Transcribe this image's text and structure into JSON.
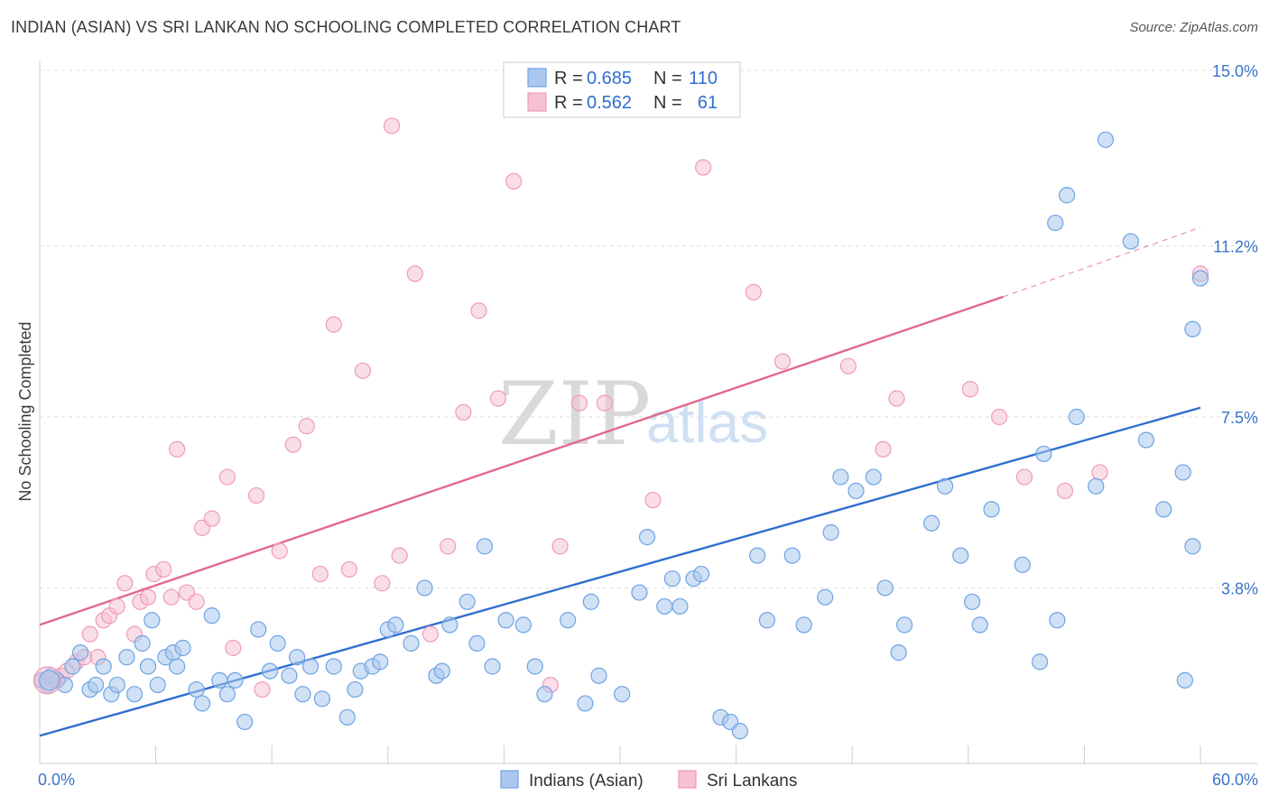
{
  "title": "INDIAN (ASIAN) VS SRI LANKAN NO SCHOOLING COMPLETED CORRELATION CHART",
  "source": "Source: ZipAtlas.com",
  "watermark": {
    "part1": "ZIP",
    "part2": "atlas"
  },
  "chart_data": {
    "type": "scatter",
    "title": "INDIAN (ASIAN) VS SRI LANKAN NO SCHOOLING COMPLETED CORRELATION CHART",
    "xlabel": "",
    "ylabel": "No Schooling Completed",
    "xlim": [
      0,
      60
    ],
    "ylim": [
      0,
      15
    ],
    "x_tick_labels": [
      "0.0%",
      "60.0%"
    ],
    "y_ticks": [
      3.8,
      7.5,
      11.2,
      15.0
    ],
    "y_tick_labels": [
      "3.8%",
      "7.5%",
      "11.2%",
      "15.0%"
    ],
    "legend": {
      "position": "top-center",
      "entries": [
        {
          "r_label": "R =",
          "r": "0.685",
          "n_label": "N =",
          "n": "110"
        },
        {
          "r_label": "R =",
          "r": "0.562",
          "n_label": "N =",
          "n": "61"
        }
      ]
    },
    "bottom_legend": [
      "Indians (Asian)",
      "Sri Lankans"
    ],
    "series": [
      {
        "name": "Indians (Asian)",
        "color": "#6fa3e3",
        "fill": "#aac8ee",
        "trend": {
          "x": [
            0,
            60
          ],
          "y": [
            0.6,
            7.7
          ],
          "color": "#2e6fd0"
        },
        "points": [
          [
            0.1,
            1.8
          ],
          [
            0.4,
            1.7
          ],
          [
            0.6,
            1.9
          ],
          [
            0.9,
            1.8
          ],
          [
            1.3,
            1.7
          ],
          [
            1.7,
            2.1
          ],
          [
            2.1,
            2.4
          ],
          [
            2.6,
            1.6
          ],
          [
            2.9,
            1.7
          ],
          [
            3.3,
            2.1
          ],
          [
            3.7,
            1.5
          ],
          [
            4.0,
            1.7
          ],
          [
            4.5,
            2.3
          ],
          [
            4.9,
            1.5
          ],
          [
            5.3,
            2.6
          ],
          [
            5.6,
            2.1
          ],
          [
            5.8,
            3.1
          ],
          [
            6.1,
            1.7
          ],
          [
            6.5,
            2.3
          ],
          [
            6.9,
            2.4
          ],
          [
            7.1,
            2.1
          ],
          [
            7.4,
            2.5
          ],
          [
            8.1,
            1.6
          ],
          [
            8.4,
            1.3
          ],
          [
            8.9,
            3.2
          ],
          [
            9.3,
            1.8
          ],
          [
            9.7,
            1.5
          ],
          [
            10.1,
            1.8
          ],
          [
            10.6,
            0.9
          ],
          [
            11.3,
            2.9
          ],
          [
            11.9,
            2.0
          ],
          [
            12.3,
            2.6
          ],
          [
            12.9,
            1.9
          ],
          [
            13.3,
            2.3
          ],
          [
            13.6,
            1.5
          ],
          [
            14.0,
            2.1
          ],
          [
            14.6,
            1.4
          ],
          [
            15.2,
            2.1
          ],
          [
            15.9,
            1.0
          ],
          [
            16.3,
            1.6
          ],
          [
            16.6,
            2.0
          ],
          [
            17.2,
            2.1
          ],
          [
            17.6,
            2.2
          ],
          [
            18.0,
            2.9
          ],
          [
            18.4,
            3.0
          ],
          [
            19.2,
            2.6
          ],
          [
            19.9,
            3.8
          ],
          [
            20.5,
            1.9
          ],
          [
            20.8,
            2.0
          ],
          [
            21.2,
            3.0
          ],
          [
            22.1,
            3.5
          ],
          [
            22.6,
            2.6
          ],
          [
            23.0,
            4.7
          ],
          [
            23.4,
            2.1
          ],
          [
            24.1,
            3.1
          ],
          [
            25.0,
            3.0
          ],
          [
            25.6,
            2.1
          ],
          [
            26.1,
            1.5
          ],
          [
            27.3,
            3.1
          ],
          [
            28.2,
            1.3
          ],
          [
            28.5,
            3.5
          ],
          [
            28.9,
            1.9
          ],
          [
            30.1,
            1.5
          ],
          [
            31.0,
            3.7
          ],
          [
            31.4,
            4.9
          ],
          [
            32.3,
            3.4
          ],
          [
            32.7,
            4.0
          ],
          [
            33.1,
            3.4
          ],
          [
            33.8,
            4.0
          ],
          [
            34.2,
            4.1
          ],
          [
            35.2,
            1.0
          ],
          [
            35.7,
            0.9
          ],
          [
            36.2,
            0.7
          ],
          [
            37.1,
            4.5
          ],
          [
            37.6,
            3.1
          ],
          [
            38.9,
            4.5
          ],
          [
            39.5,
            3.0
          ],
          [
            40.6,
            3.6
          ],
          [
            40.9,
            5.0
          ],
          [
            41.4,
            6.2
          ],
          [
            42.2,
            5.9
          ],
          [
            43.1,
            6.2
          ],
          [
            43.7,
            3.8
          ],
          [
            44.4,
            2.4
          ],
          [
            44.7,
            3.0
          ],
          [
            46.1,
            5.2
          ],
          [
            46.8,
            6.0
          ],
          [
            47.6,
            4.5
          ],
          [
            48.2,
            3.5
          ],
          [
            48.6,
            3.0
          ],
          [
            49.2,
            5.5
          ],
          [
            50.8,
            4.3
          ],
          [
            51.7,
            2.2
          ],
          [
            51.9,
            6.7
          ],
          [
            52.5,
            11.7
          ],
          [
            52.6,
            3.1
          ],
          [
            53.1,
            12.3
          ],
          [
            53.6,
            7.5
          ],
          [
            54.6,
            6.0
          ],
          [
            55.1,
            13.5
          ],
          [
            56.4,
            11.3
          ],
          [
            57.2,
            7.0
          ],
          [
            58.1,
            5.5
          ],
          [
            59.1,
            6.3
          ],
          [
            59.2,
            1.8
          ],
          [
            59.6,
            4.7
          ],
          [
            59.6,
            9.4
          ],
          [
            60.0,
            10.5
          ]
        ]
      },
      {
        "name": "Sri Lankans",
        "color": "#f09ab8",
        "fill": "#f6c2d3",
        "trend": {
          "x": [
            0,
            49.8
          ],
          "y": [
            3.0,
            10.1
          ],
          "x_dashed_to": 60,
          "y_dashed_to": 11.6,
          "color": "#e2678f"
        },
        "points": [
          [
            0.1,
            1.8
          ],
          [
            0.6,
            1.8
          ],
          [
            1.1,
            1.9
          ],
          [
            1.4,
            2.0
          ],
          [
            1.9,
            2.2
          ],
          [
            2.3,
            2.3
          ],
          [
            2.6,
            2.8
          ],
          [
            3.0,
            2.3
          ],
          [
            3.3,
            3.1
          ],
          [
            3.6,
            3.2
          ],
          [
            4.0,
            3.4
          ],
          [
            4.4,
            3.9
          ],
          [
            4.9,
            2.8
          ],
          [
            5.2,
            3.5
          ],
          [
            5.6,
            3.6
          ],
          [
            5.9,
            4.1
          ],
          [
            6.4,
            4.2
          ],
          [
            6.8,
            3.6
          ],
          [
            7.1,
            6.8
          ],
          [
            7.6,
            3.7
          ],
          [
            8.1,
            3.5
          ],
          [
            8.4,
            5.1
          ],
          [
            8.9,
            5.3
          ],
          [
            9.7,
            6.2
          ],
          [
            10.0,
            2.5
          ],
          [
            11.2,
            5.8
          ],
          [
            11.5,
            1.6
          ],
          [
            12.4,
            4.6
          ],
          [
            13.1,
            6.9
          ],
          [
            13.8,
            7.3
          ],
          [
            14.5,
            4.1
          ],
          [
            15.2,
            9.5
          ],
          [
            16.0,
            4.2
          ],
          [
            16.7,
            8.5
          ],
          [
            17.7,
            3.9
          ],
          [
            18.2,
            13.8
          ],
          [
            18.6,
            4.5
          ],
          [
            19.4,
            10.6
          ],
          [
            20.2,
            2.8
          ],
          [
            21.1,
            4.7
          ],
          [
            21.9,
            7.6
          ],
          [
            22.7,
            9.8
          ],
          [
            23.7,
            7.9
          ],
          [
            24.5,
            12.6
          ],
          [
            26.4,
            1.7
          ],
          [
            26.9,
            4.7
          ],
          [
            27.9,
            7.8
          ],
          [
            29.2,
            7.8
          ],
          [
            31.7,
            5.7
          ],
          [
            34.3,
            12.9
          ],
          [
            36.9,
            10.2
          ],
          [
            38.4,
            8.7
          ],
          [
            41.8,
            8.6
          ],
          [
            43.6,
            6.8
          ],
          [
            44.3,
            7.9
          ],
          [
            48.1,
            8.1
          ],
          [
            49.6,
            7.5
          ],
          [
            50.9,
            6.2
          ],
          [
            53.0,
            5.9
          ],
          [
            54.8,
            6.3
          ],
          [
            60.0,
            10.6
          ]
        ]
      }
    ]
  }
}
